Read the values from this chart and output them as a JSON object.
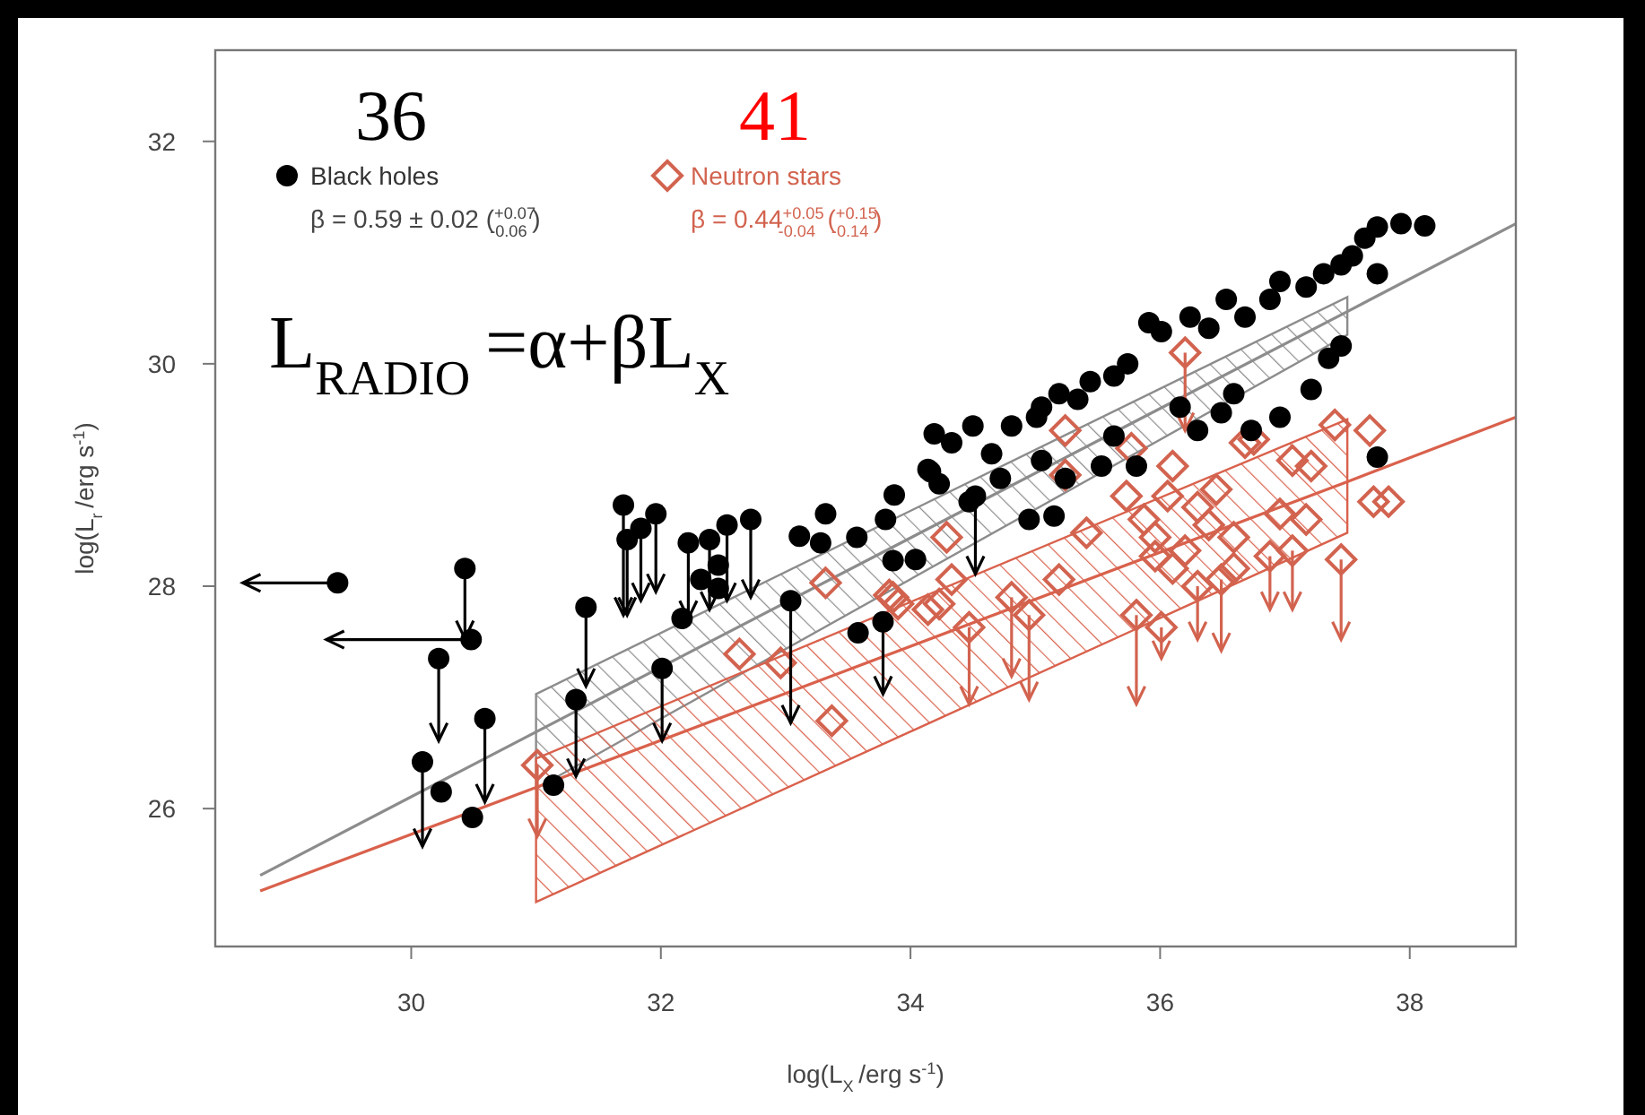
{
  "chart_data": {
    "type": "scatter",
    "xlabel": "log(L$_{X}$/erg s$^{-1}$)",
    "ylabel": "log(L$_{r}$/erg s$^{-1}$)",
    "xlim": [
      28.43,
      38.85
    ],
    "ylim": [
      24.76,
      32.82
    ],
    "xticks": [
      30,
      32,
      34,
      36,
      38
    ],
    "yticks": [
      26,
      28,
      30,
      32
    ],
    "grid": false,
    "legend": "top left",
    "annotations": [
      "36",
      "41",
      "β = 0.59 ± 0.02 ($^{+0.07}$$_{-0.06}$)",
      "β = 0.44$^{+0.05}$$_{-0.04}$ ($^{+0.15}$$_{-0.14}$)",
      "L$_{RADIO}$=α+βL$_{X}$"
    ],
    "series": [
      {
        "type": "line",
        "color": "#8c8c8c",
        "x": [
          28.79,
          31,
          37.5,
          38.85
        ],
        "values": [
          25.4,
          26.69,
          30.47,
          31.26
        ],
        "lower": [
          null,
          26.18,
          30.26,
          null
        ],
        "upper": [
          null,
          27.03,
          30.6,
          null
        ]
      },
      {
        "type": "line",
        "color": "#d9614c",
        "x": [
          28.79,
          31,
          37.5,
          38.85
        ],
        "values": [
          25.26,
          26.19,
          28.94,
          29.52
        ],
        "lower": [
          null,
          25.16,
          28.48,
          null
        ],
        "upper": [
          null,
          26.45,
          29.5,
          null
        ]
      },
      {
        "name": "Neutron stars",
        "color": "#d2634f",
        "marker": "diamond",
        "x": [
          31.01,
          33.32,
          32.63,
          33.37,
          33.83,
          34.29,
          34.23,
          36.2,
          35.24,
          35.77,
          35.24,
          36.75,
          37.4,
          37.68,
          37.71,
          37.83,
          37.45,
          35.41,
          35.19,
          34.81,
          34.95,
          34.47,
          33.9,
          35.81,
          36.01,
          35.73,
          36.1,
          35.96,
          36.2,
          36.39,
          36.59,
          36.3,
          36.49,
          36.88,
          37.06,
          36.96,
          37.17,
          37.21,
          37.06,
          36.68,
          36.06,
          36.45,
          36.3,
          35.87,
          35.96,
          36.1,
          36.59,
          34.14,
          34.33,
          33.86,
          32.96
        ],
        "values": [
          26.39,
          28.03,
          27.39,
          26.79,
          27.92,
          28.44,
          27.84,
          30.1,
          29.4,
          29.24,
          29.0,
          29.32,
          29.45,
          29.4,
          28.76,
          28.76,
          28.24,
          28.48,
          28.06,
          27.9,
          27.74,
          27.63,
          27.84,
          27.74,
          27.63,
          28.81,
          29.08,
          28.44,
          28.32,
          28.55,
          28.44,
          28.0,
          28.06,
          28.27,
          28.32,
          28.65,
          28.6,
          29.08,
          29.13,
          29.29,
          28.81,
          28.87,
          28.71,
          28.6,
          28.27,
          28.16,
          28.16,
          27.79,
          28.06,
          27.9,
          27.31
        ],
        "errors": [
          [
            25.75,
            26.39
          ],
          null,
          null,
          null,
          null,
          null,
          null,
          [
            29.4,
            30.1
          ],
          null,
          null,
          null,
          null,
          null,
          null,
          null,
          null,
          [
            27.52,
            28.24
          ],
          null,
          null,
          [
            27.19,
            27.9
          ],
          [
            26.98,
            27.74
          ],
          [
            26.94,
            27.63
          ],
          null,
          [
            26.94,
            27.74
          ],
          [
            27.35,
            27.63
          ],
          null,
          null,
          null,
          null,
          null,
          null,
          [
            27.52,
            28.0
          ],
          [
            27.42,
            28.06
          ],
          [
            27.79,
            28.27
          ],
          [
            27.79,
            28.32
          ],
          null,
          null,
          null,
          null,
          null,
          null,
          null,
          null,
          null,
          null,
          null,
          null,
          null,
          null,
          null,
          null
        ]
      },
      {
        "name": "Black holes",
        "color": "#000000",
        "marker": "circle",
        "x": [
          29.41,
          30.43,
          30.48,
          30.22,
          30.09,
          30.24,
          30.49,
          30.59,
          31.4,
          31.32,
          31.14,
          31.7,
          31.73,
          31.84,
          31.96,
          32.22,
          32.39,
          32.53,
          32.46,
          32.46,
          32.32,
          32.72,
          32.17,
          32.01,
          33.11,
          33.04,
          33.32,
          33.28,
          33.57,
          33.58,
          33.8,
          33.87,
          33.86,
          34.04,
          33.78,
          34.16,
          34.23,
          34.52,
          34.19,
          34.33,
          34.5,
          34.65,
          34.81,
          35.01,
          35.05,
          35.19,
          35.34,
          35.44,
          35.63,
          35.74,
          35.91,
          36.01,
          36.24,
          36.39,
          36.53,
          36.68,
          36.88,
          36.96,
          37.17,
          37.31,
          37.45,
          37.54,
          37.64,
          37.74,
          37.93,
          38.12,
          37.74,
          37.45,
          37.35,
          36.59,
          36.49,
          36.73,
          36.96,
          37.21,
          37.74,
          36.16,
          36.3,
          35.81,
          35.53,
          35.63,
          35.24,
          35.05,
          35.15,
          34.95,
          34.72,
          34.47,
          34.14
        ],
        "values": [
          28.03,
          28.16,
          27.52,
          27.35,
          26.42,
          26.15,
          25.92,
          26.81,
          27.81,
          26.98,
          26.21,
          28.73,
          28.42,
          28.52,
          28.65,
          28.39,
          28.42,
          28.55,
          28.19,
          27.98,
          28.06,
          28.6,
          27.71,
          27.26,
          28.45,
          27.87,
          28.65,
          28.39,
          28.44,
          27.58,
          28.6,
          28.82,
          28.23,
          28.24,
          27.68,
          29.03,
          28.92,
          28.81,
          29.37,
          29.29,
          29.44,
          29.19,
          29.44,
          29.52,
          29.61,
          29.73,
          29.68,
          29.84,
          29.89,
          30.0,
          30.37,
          30.29,
          30.42,
          30.32,
          30.58,
          30.42,
          30.58,
          30.74,
          30.69,
          30.81,
          30.89,
          30.97,
          31.13,
          31.23,
          31.26,
          31.24,
          30.81,
          30.16,
          30.05,
          29.73,
          29.56,
          29.4,
          29.52,
          29.77,
          29.16,
          29.61,
          29.4,
          29.08,
          29.08,
          29.35,
          28.97,
          29.13,
          28.63,
          28.6,
          28.97,
          28.76,
          29.05
        ],
        "errors": [
          null,
          [
            27.53,
            28.16
          ],
          null,
          [
            26.61,
            27.35
          ],
          [
            25.66,
            26.42
          ],
          null,
          null,
          [
            26.06,
            26.81
          ],
          [
            27.1,
            27.81
          ],
          [
            26.29,
            26.98
          ],
          null,
          [
            27.74,
            28.73
          ],
          [
            27.74,
            28.42
          ],
          [
            27.87,
            28.52
          ],
          [
            27.95,
            28.65
          ],
          [
            27.71,
            28.39
          ],
          [
            27.79,
            28.42
          ],
          [
            27.87,
            28.55
          ],
          null,
          null,
          null,
          [
            27.9,
            28.6
          ],
          null,
          [
            26.61,
            27.26
          ],
          null,
          [
            26.77,
            27.87
          ],
          null,
          null,
          null,
          null,
          null,
          null,
          null,
          null,
          [
            27.03,
            27.68
          ],
          null,
          null,
          [
            28.11,
            28.81
          ],
          null,
          null,
          null,
          null,
          null,
          null,
          null,
          null,
          null,
          null,
          null,
          null,
          null,
          null,
          null,
          null,
          null,
          null,
          null,
          null,
          null,
          null,
          null,
          null,
          null,
          null,
          null,
          null,
          null,
          null,
          null,
          null,
          null,
          null,
          null,
          null,
          null,
          null,
          null,
          null,
          null,
          null,
          null,
          null,
          null,
          null,
          null,
          null,
          null
        ],
        "xerrors": [
          [
            28.65,
            29.41
          ],
          null,
          [
            29.32,
            30.48
          ],
          null,
          null,
          null,
          null,
          null,
          null,
          null,
          null,
          null,
          null,
          null,
          null,
          null,
          null,
          null,
          null,
          null,
          null,
          null,
          null,
          null,
          null,
          null,
          null,
          null,
          null,
          null,
          null,
          null,
          null,
          null,
          null,
          null,
          null,
          null,
          null,
          null,
          null,
          null,
          null,
          null,
          null,
          null,
          null,
          null,
          null,
          null,
          null,
          null,
          null,
          null,
          null,
          null,
          null,
          null,
          null,
          null,
          null,
          null,
          null,
          null,
          null,
          null,
          null,
          null,
          null,
          null,
          null,
          null,
          null,
          null,
          null,
          null,
          null,
          null,
          null,
          null,
          null,
          null,
          null,
          null,
          null,
          null,
          null
        ]
      }
    ]
  }
}
